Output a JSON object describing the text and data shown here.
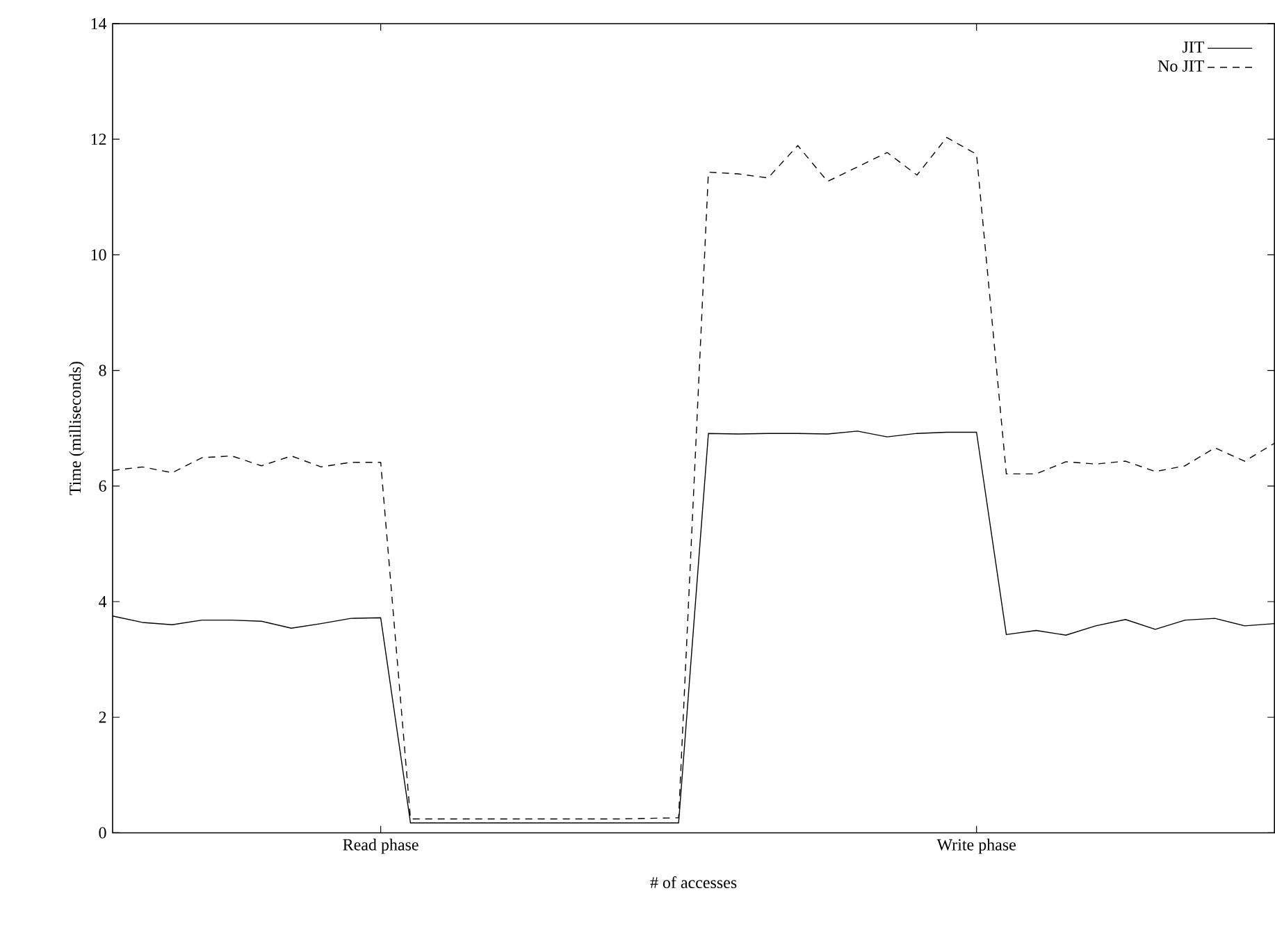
{
  "chart_data": {
    "type": "line",
    "xlabel": "# of accesses",
    "ylabel": "Time (milliseconds)",
    "categories": [
      null,
      null,
      null,
      null,
      null,
      null,
      null,
      null,
      null,
      "Read phase",
      null,
      null,
      null,
      null,
      null,
      null,
      null,
      null,
      null,
      null,
      null,
      null,
      null,
      null,
      null,
      null,
      null,
      null,
      null,
      "Write phase",
      null,
      null,
      null,
      null,
      null,
      null,
      null,
      null,
      null,
      null
    ],
    "ylim": [
      0,
      14
    ],
    "yticks": [
      0,
      2,
      4,
      6,
      8,
      10,
      12,
      14
    ],
    "legend": "top right",
    "marker": "none",
    "grid": false,
    "series": [
      {
        "name": "JIT",
        "color": "#000000",
        "line_style": "solid",
        "values": [
          3.75,
          3.64,
          3.6,
          3.68,
          3.68,
          3.66,
          3.54,
          3.62,
          3.71,
          3.72,
          0.17,
          0.17,
          0.17,
          0.17,
          0.17,
          0.17,
          0.17,
          0.17,
          0.17,
          0.17,
          6.91,
          6.9,
          6.91,
          6.91,
          6.9,
          6.95,
          6.85,
          6.91,
          6.93,
          6.93,
          3.43,
          3.5,
          3.42,
          3.58,
          3.69,
          3.52,
          3.68,
          3.71,
          3.58,
          3.62
        ]
      },
      {
        "name": "No JIT",
        "color": "#000000",
        "line_style": "dashed",
        "values": [
          6.27,
          6.33,
          6.23,
          6.49,
          6.52,
          6.35,
          6.52,
          6.33,
          6.41,
          6.41,
          0.24,
          0.24,
          0.24,
          0.24,
          0.24,
          0.24,
          0.24,
          0.24,
          0.25,
          0.26,
          11.43,
          11.4,
          11.33,
          11.89,
          11.27,
          11.52,
          11.77,
          11.38,
          12.03,
          11.74,
          6.21,
          6.21,
          6.42,
          6.38,
          6.43,
          6.25,
          6.35,
          6.66,
          6.43,
          6.74
        ]
      }
    ]
  }
}
